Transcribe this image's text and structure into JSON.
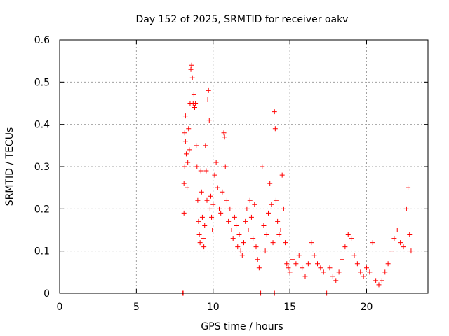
{
  "chart_data": {
    "type": "scatter",
    "title": "Day 152 of 2025, SRMTID for receiver oakv",
    "xlabel": "GPS time / hours",
    "ylabel": "SRMTID / TECUs",
    "xlim": [
      0,
      24
    ],
    "ylim": [
      0,
      0.6
    ],
    "xticks": [
      0,
      5,
      10,
      15,
      20
    ],
    "xtick_labels": [
      "0",
      "5",
      "10",
      "15",
      "20"
    ],
    "yticks": [
      0,
      0.1,
      0.2,
      0.3,
      0.4,
      0.5,
      0.6
    ],
    "ytick_labels": [
      "0",
      "0.1",
      "0.2",
      "0.3",
      "0.4",
      "0.5",
      "0.6"
    ],
    "grid": true,
    "marker": "+",
    "color": "#ff0000",
    "series": [
      {
        "name": "SRMTID",
        "points": [
          [
            8.0,
            0.0
          ],
          [
            8.05,
            0.0
          ],
          [
            8.1,
            0.19
          ],
          [
            8.1,
            0.26
          ],
          [
            8.15,
            0.3
          ],
          [
            8.15,
            0.38
          ],
          [
            8.2,
            0.36
          ],
          [
            8.2,
            0.42
          ],
          [
            8.25,
            0.33
          ],
          [
            8.3,
            0.25
          ],
          [
            8.35,
            0.31
          ],
          [
            8.4,
            0.39
          ],
          [
            8.45,
            0.34
          ],
          [
            8.5,
            0.45
          ],
          [
            8.55,
            0.53
          ],
          [
            8.6,
            0.54
          ],
          [
            8.65,
            0.51
          ],
          [
            8.7,
            0.45
          ],
          [
            8.75,
            0.47
          ],
          [
            8.8,
            0.44
          ],
          [
            8.85,
            0.45
          ],
          [
            8.9,
            0.35
          ],
          [
            8.95,
            0.3
          ],
          [
            9.0,
            0.22
          ],
          [
            9.05,
            0.17
          ],
          [
            9.1,
            0.14
          ],
          [
            9.15,
            0.12
          ],
          [
            9.2,
            0.29
          ],
          [
            9.25,
            0.24
          ],
          [
            9.3,
            0.18
          ],
          [
            9.35,
            0.13
          ],
          [
            9.4,
            0.11
          ],
          [
            9.45,
            0.16
          ],
          [
            9.5,
            0.35
          ],
          [
            9.55,
            0.29
          ],
          [
            9.6,
            0.22
          ],
          [
            9.65,
            0.46
          ],
          [
            9.7,
            0.48
          ],
          [
            9.75,
            0.41
          ],
          [
            9.8,
            0.2
          ],
          [
            9.85,
            0.23
          ],
          [
            9.9,
            0.18
          ],
          [
            9.95,
            0.15
          ],
          [
            10.0,
            0.21
          ],
          [
            10.1,
            0.28
          ],
          [
            10.2,
            0.31
          ],
          [
            10.3,
            0.25
          ],
          [
            10.4,
            0.2
          ],
          [
            10.5,
            0.19
          ],
          [
            10.6,
            0.24
          ],
          [
            10.7,
            0.38
          ],
          [
            10.75,
            0.37
          ],
          [
            10.8,
            0.3
          ],
          [
            10.9,
            0.22
          ],
          [
            11.0,
            0.17
          ],
          [
            11.1,
            0.2
          ],
          [
            11.2,
            0.15
          ],
          [
            11.3,
            0.13
          ],
          [
            11.4,
            0.18
          ],
          [
            11.5,
            0.16
          ],
          [
            11.6,
            0.11
          ],
          [
            11.7,
            0.14
          ],
          [
            11.8,
            0.1
          ],
          [
            11.9,
            0.09
          ],
          [
            12.0,
            0.12
          ],
          [
            12.1,
            0.17
          ],
          [
            12.2,
            0.2
          ],
          [
            12.3,
            0.15
          ],
          [
            12.4,
            0.22
          ],
          [
            12.5,
            0.18
          ],
          [
            12.6,
            0.13
          ],
          [
            12.7,
            0.21
          ],
          [
            12.8,
            0.11
          ],
          [
            12.9,
            0.08
          ],
          [
            13.0,
            0.06
          ],
          [
            13.1,
            0.0
          ],
          [
            13.2,
            0.3
          ],
          [
            13.3,
            0.16
          ],
          [
            13.4,
            0.1
          ],
          [
            13.5,
            0.14
          ],
          [
            13.6,
            0.19
          ],
          [
            13.7,
            0.26
          ],
          [
            13.8,
            0.21
          ],
          [
            13.9,
            0.12
          ],
          [
            14.0,
            0.43
          ],
          [
            14.0,
            0.0
          ],
          [
            14.05,
            0.39
          ],
          [
            14.1,
            0.22
          ],
          [
            14.2,
            0.17
          ],
          [
            14.3,
            0.14
          ],
          [
            14.4,
            0.15
          ],
          [
            14.5,
            0.28
          ],
          [
            14.6,
            0.2
          ],
          [
            14.7,
            0.12
          ],
          [
            14.8,
            0.07
          ],
          [
            14.9,
            0.06
          ],
          [
            15.0,
            0.05
          ],
          [
            15.2,
            0.08
          ],
          [
            15.4,
            0.07
          ],
          [
            15.6,
            0.09
          ],
          [
            15.8,
            0.06
          ],
          [
            16.0,
            0.04
          ],
          [
            16.2,
            0.07
          ],
          [
            16.4,
            0.12
          ],
          [
            16.6,
            0.09
          ],
          [
            16.8,
            0.07
          ],
          [
            17.0,
            0.06
          ],
          [
            17.2,
            0.05
          ],
          [
            17.4,
            0.0
          ],
          [
            17.6,
            0.06
          ],
          [
            17.8,
            0.04
          ],
          [
            18.0,
            0.03
          ],
          [
            18.2,
            0.05
          ],
          [
            18.4,
            0.08
          ],
          [
            18.6,
            0.11
          ],
          [
            18.8,
            0.14
          ],
          [
            19.0,
            0.13
          ],
          [
            19.2,
            0.09
          ],
          [
            19.4,
            0.07
          ],
          [
            19.6,
            0.05
          ],
          [
            19.8,
            0.04
          ],
          [
            20.0,
            0.06
          ],
          [
            20.2,
            0.05
          ],
          [
            20.4,
            0.12
          ],
          [
            20.6,
            0.03
          ],
          [
            20.8,
            0.02
          ],
          [
            21.0,
            0.03
          ],
          [
            21.2,
            0.05
          ],
          [
            21.4,
            0.07
          ],
          [
            21.6,
            0.1
          ],
          [
            21.8,
            0.13
          ],
          [
            22.0,
            0.15
          ],
          [
            22.2,
            0.12
          ],
          [
            22.4,
            0.11
          ],
          [
            22.6,
            0.2
          ],
          [
            22.7,
            0.25
          ],
          [
            22.8,
            0.14
          ],
          [
            22.9,
            0.1
          ]
        ]
      }
    ]
  }
}
